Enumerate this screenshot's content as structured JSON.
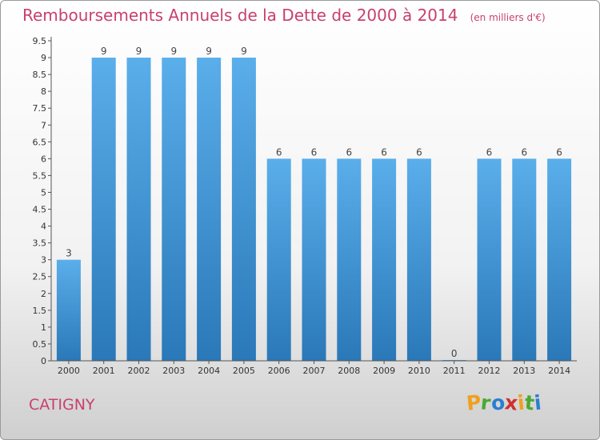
{
  "chart_data": {
    "type": "bar",
    "title": "Remboursements Annuels de la Dette de 2000 à 2014",
    "unit_note": "(en milliers d'€)",
    "categories": [
      "2000",
      "2001",
      "2002",
      "2003",
      "2004",
      "2005",
      "2006",
      "2007",
      "2008",
      "2009",
      "2010",
      "2011",
      "2012",
      "2013",
      "2014"
    ],
    "values": [
      3,
      9,
      9,
      9,
      9,
      9,
      6,
      6,
      6,
      6,
      6,
      0,
      6,
      6,
      6
    ],
    "data_labels": [
      "3",
      "9",
      "9",
      "9",
      "9",
      "9",
      "6",
      "6",
      "6",
      "6",
      "6",
      "0",
      "6",
      "6",
      "6"
    ],
    "ylim": [
      0,
      9.5
    ],
    "y_ticks": [
      "0",
      "0.5",
      "1",
      "1.5",
      "2",
      "2.5",
      "3",
      "3.5",
      "4",
      "4.5",
      "5",
      "5.5",
      "6",
      "6.5",
      "7",
      "7.5",
      "8",
      "8.5",
      "9",
      "9.5"
    ],
    "grid": false,
    "bar_color": "#4a9fdf"
  },
  "commune": "CATIGNY",
  "logo": [
    "P",
    "r",
    "o",
    "x",
    "i",
    "t",
    "i"
  ],
  "logo_colors": [
    "#f0a020",
    "#4aaa30",
    "#2a7fd0",
    "#d03030",
    "#f0a020",
    "#4aaa30",
    "#2a7fd0"
  ]
}
